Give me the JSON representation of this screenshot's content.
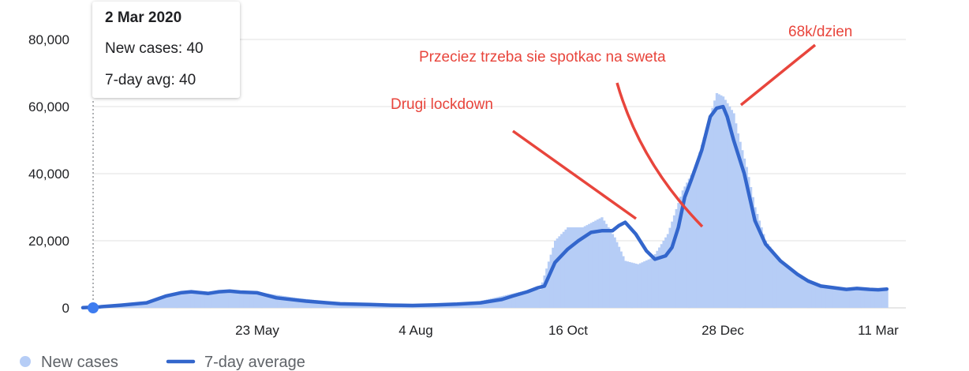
{
  "chart_data": {
    "type": "bar",
    "ylim": [
      0,
      80000
    ],
    "y_ticks": [
      "0",
      "20,000",
      "40,000",
      "60,000",
      "80,000"
    ],
    "x_ticks": [
      "23 May",
      "4 Aug",
      "16 Oct",
      "28 Dec",
      "11 Mar"
    ],
    "grid": true,
    "legend_position": "bottom-left",
    "series": [
      {
        "name": "New cases",
        "style": "bars",
        "color": "#b6cdf6",
        "x": [
          "2 Mar 2020",
          "15 Mar",
          "1 Apr",
          "10 Apr",
          "20 Apr",
          "1 May",
          "10 May",
          "25 May",
          "10 Jun",
          "1 Jul",
          "20 Jul",
          "4 Aug",
          "20 Aug",
          "1 Sep",
          "15 Sep",
          "25 Sep",
          "3 Oct",
          "10 Oct",
          "16 Oct",
          "23 Oct",
          "1 Nov",
          "7 Nov",
          "12 Nov",
          "18 Nov",
          "25 Nov",
          "2 Dec",
          "9 Dec",
          "15 Dec",
          "20 Dec",
          "25 Dec",
          "28 Dec",
          "2 Jan",
          "4 Jan",
          "8 Jan",
          "12 Jan",
          "17 Jan",
          "25 Jan",
          "2 Feb",
          "10 Feb",
          "18 Feb",
          "25 Feb",
          "3 Mar",
          "11 Mar",
          "15 Mar"
        ],
        "values": [
          40,
          300,
          2000,
          4000,
          5000,
          4500,
          5000,
          4500,
          3000,
          1500,
          800,
          800,
          900,
          1500,
          3500,
          5000,
          5500,
          20000,
          24000,
          24000,
          27000,
          21000,
          14000,
          13000,
          15000,
          22000,
          35000,
          42000,
          53000,
          64000,
          63000,
          58000,
          52000,
          42000,
          30000,
          20000,
          13000,
          10000,
          7000,
          6000,
          5800,
          5500,
          5700,
          6000
        ]
      },
      {
        "name": "7-day average",
        "style": "line",
        "color": "#3366cc",
        "x": [
          "2 Mar 2020",
          "10 Mar",
          "20 Mar",
          "1 Apr",
          "10 Apr",
          "17 Apr",
          "22 Apr",
          "30 Apr",
          "5 May",
          "10 May",
          "15 May",
          "23 May",
          "1 Jun",
          "15 Jun",
          "1 Jul",
          "15 Jul",
          "25 Jul",
          "4 Aug",
          "15 Aug",
          "25 Aug",
          "5 Sep",
          "15 Sep",
          "20 Sep",
          "27 Sep",
          "2 Oct",
          "5 Oct",
          "10 Oct",
          "16 Oct",
          "21 Oct",
          "27 Oct",
          "1 Nov",
          "6 Nov",
          "9 Nov",
          "12 Nov",
          "17 Nov",
          "22 Nov",
          "26 Nov",
          "1 Dec",
          "4 Dec",
          "7 Dec",
          "10 Dec",
          "13 Dec",
          "18 Dec",
          "22 Dec",
          "25 Dec",
          "28 Dec",
          "30 Dec",
          "2 Jan",
          "7 Jan",
          "12 Jan",
          "17 Jan",
          "24 Jan",
          "1 Feb",
          "6 Feb",
          "12 Feb",
          "18 Feb",
          "24 Feb",
          "1 Mar",
          "7 Mar",
          "11 Mar",
          "15 Mar"
        ],
        "values": [
          40,
          300,
          800,
          1500,
          3500,
          4500,
          4800,
          4300,
          4800,
          5000,
          4700,
          4500,
          3000,
          2000,
          1200,
          1000,
          800,
          700,
          900,
          1100,
          1500,
          2500,
          3500,
          4800,
          6000,
          6500,
          13500,
          17500,
          20000,
          22500,
          23000,
          23000,
          24500,
          25500,
          22000,
          17000,
          14500,
          15500,
          18000,
          24000,
          33000,
          38000,
          47000,
          57000,
          59500,
          60000,
          57000,
          50000,
          40000,
          26000,
          19000,
          14000,
          10000,
          8000,
          6500,
          6000,
          5500,
          5800,
          5500,
          5400,
          5600
        ]
      }
    ],
    "annotations": [
      {
        "text": "Drugi lockdown"
      },
      {
        "text": "Przeciez trzeba sie spotkac na sweta"
      },
      {
        "text": "68k/dzien"
      }
    ],
    "tooltip": {
      "date": "2 Mar 2020",
      "new_cases": "New cases: 40",
      "avg": "7-day avg: 40"
    },
    "annotation_color": "#e8453c",
    "grid_color": "#e0e0e0"
  }
}
